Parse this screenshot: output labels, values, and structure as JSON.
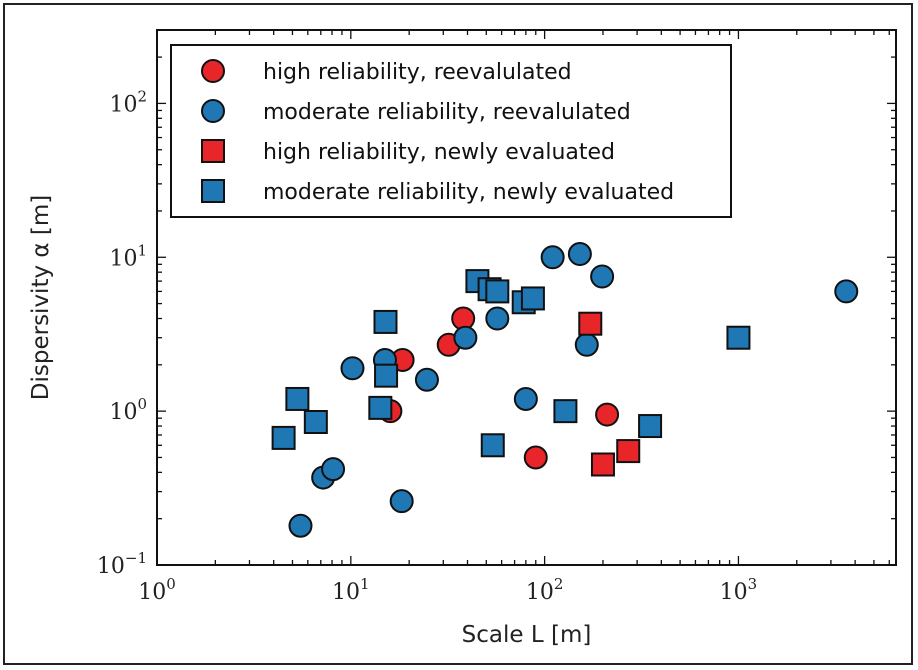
{
  "chart_data": {
    "type": "scatter",
    "xlabel": "Scale L [m]",
    "ylabel": "Dispersivity α [m]",
    "xscale": "log",
    "yscale": "log",
    "xlim": [
      1,
      6500
    ],
    "ylim": [
      0.1,
      300
    ],
    "x_ticks": [
      {
        "value": 1,
        "base": "10",
        "exp": "0"
      },
      {
        "value": 10,
        "base": "10",
        "exp": "1"
      },
      {
        "value": 100,
        "base": "10",
        "exp": "2"
      },
      {
        "value": 1000,
        "base": "10",
        "exp": "3"
      }
    ],
    "y_ticks": [
      {
        "value": 0.1,
        "base": "10",
        "exp": "−1"
      },
      {
        "value": 1,
        "base": "10",
        "exp": "0"
      },
      {
        "value": 10,
        "base": "10",
        "exp": "1"
      },
      {
        "value": 100,
        "base": "10",
        "exp": "2"
      }
    ],
    "legend_position": "top-left",
    "series": [
      {
        "name": "high reliability, reevalulated",
        "marker": "circle",
        "color": "#e8262a",
        "points": [
          [
            16,
            1.0
          ],
          [
            18.5,
            2.15
          ],
          [
            32,
            2.7
          ],
          [
            38,
            4.0
          ],
          [
            90,
            0.5
          ],
          [
            210,
            0.95
          ]
        ]
      },
      {
        "name": "moderate reliability, reevalulated",
        "marker": "circle",
        "color": "#1f77b4",
        "points": [
          [
            5.5,
            0.18
          ],
          [
            7.2,
            0.37
          ],
          [
            8.1,
            0.42
          ],
          [
            10.2,
            1.9
          ],
          [
            15,
            2.15
          ],
          [
            18.3,
            0.26
          ],
          [
            24.7,
            1.6
          ],
          [
            39,
            3.0
          ],
          [
            57,
            4.0
          ],
          [
            80,
            1.2
          ],
          [
            110,
            10.0
          ],
          [
            152,
            10.5
          ],
          [
            165,
            2.7
          ],
          [
            198,
            7.5
          ],
          [
            3600,
            6.0
          ]
        ]
      },
      {
        "name": "high reliability, newly evaluated",
        "marker": "square",
        "color": "#e8262a",
        "points": [
          [
            172,
            3.7
          ],
          [
            200,
            0.45
          ],
          [
            270,
            0.55
          ]
        ]
      },
      {
        "name": "moderate reliability, newly evaluated",
        "marker": "square",
        "color": "#1f77b4",
        "points": [
          [
            4.5,
            0.67
          ],
          [
            5.3,
            1.2
          ],
          [
            6.6,
            0.85
          ],
          [
            14.2,
            1.05
          ],
          [
            15.1,
            3.8
          ],
          [
            15.2,
            1.7
          ],
          [
            45,
            7.0
          ],
          [
            52,
            6.2
          ],
          [
            57,
            6.0
          ],
          [
            54,
            0.6
          ],
          [
            78,
            5.1
          ],
          [
            87,
            5.4
          ],
          [
            128,
            1.0
          ],
          [
            350,
            0.8
          ],
          [
            1000,
            3.0
          ]
        ]
      }
    ]
  }
}
